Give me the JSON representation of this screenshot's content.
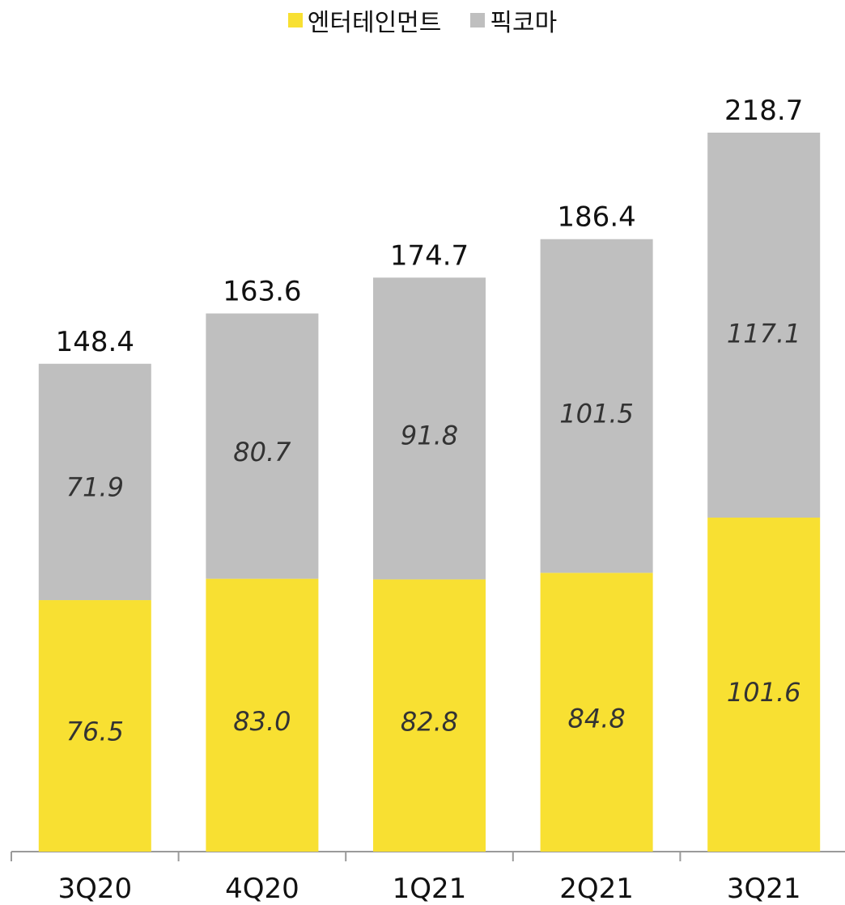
{
  "chart_data": {
    "type": "bar",
    "stacked": true,
    "categories": [
      "3Q20",
      "4Q20",
      "1Q21",
      "2Q21",
      "3Q21"
    ],
    "series": [
      {
        "name": "엔터테인먼트",
        "color": "#F8E032",
        "values": [
          76.5,
          83.0,
          82.8,
          84.8,
          101.6
        ]
      },
      {
        "name": "픽코마",
        "color": "#BFBFBF",
        "values": [
          71.9,
          80.7,
          91.8,
          101.5,
          117.1
        ]
      }
    ],
    "totals": [
      148.4,
      163.6,
      174.7,
      186.4,
      218.7
    ],
    "legend_position": "top-center",
    "grid": false
  }
}
